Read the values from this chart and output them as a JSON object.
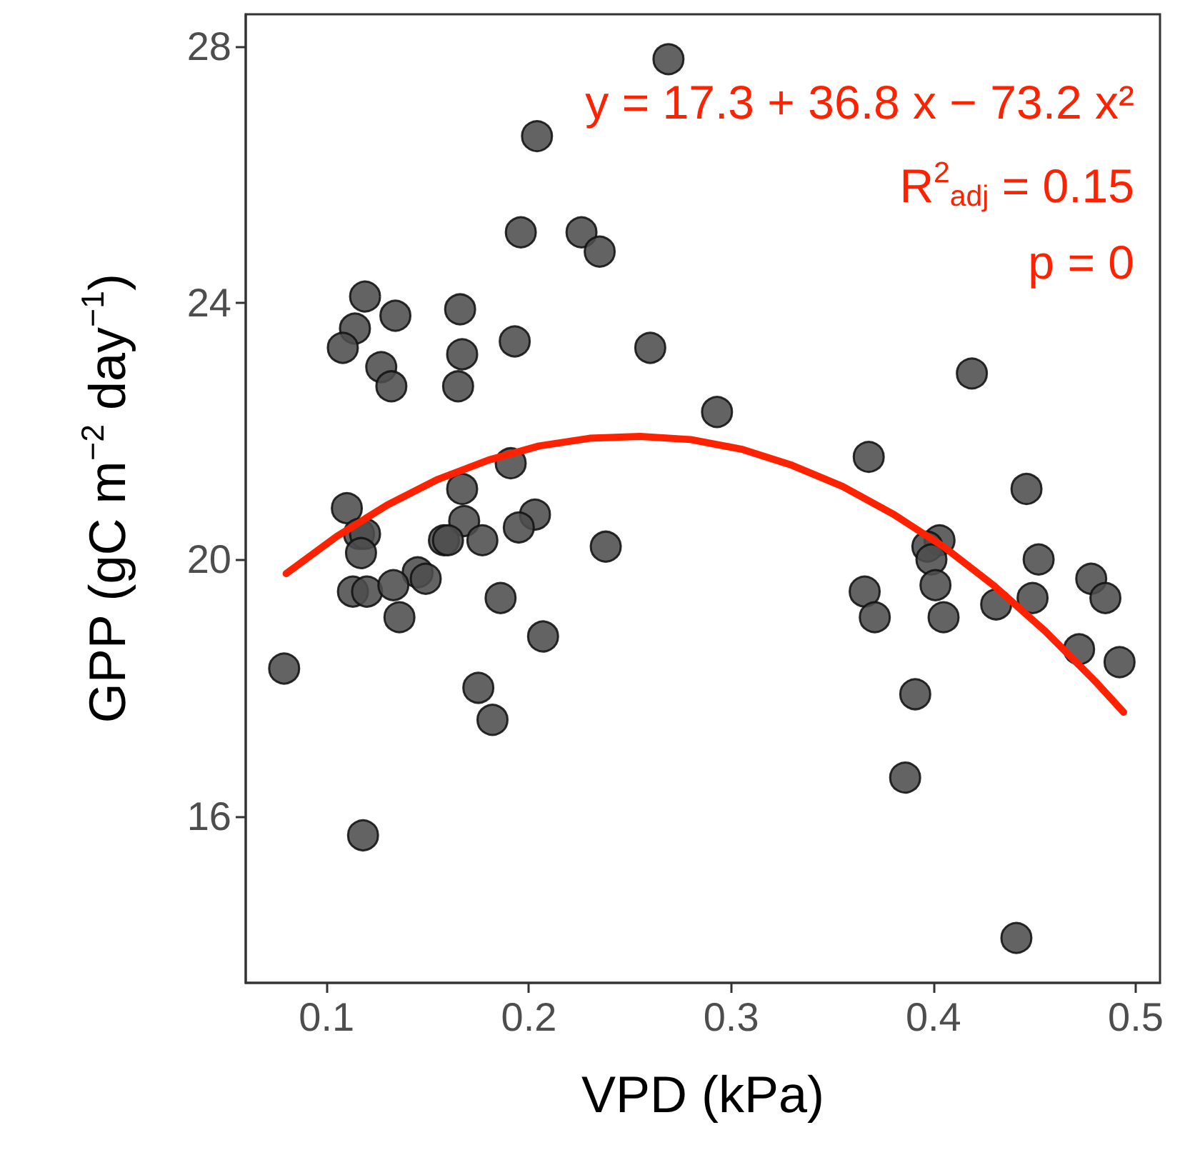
{
  "chart_data": {
    "type": "scatter",
    "xlabel": "VPD (kPa)",
    "ylabel": "GPP (gC m$^{−2}$ day$^{−1}$)",
    "xlim": [
      0.06,
      0.512
    ],
    "xticks": [
      0.1,
      0.2,
      0.3,
      0.4,
      0.5
    ],
    "ylim": [
      13.4,
      28.5
    ],
    "yticks": [
      16,
      20,
      24,
      28
    ],
    "marker": "circle",
    "annotations": [
      "y = 17.3 + 36.8 x − 73.2 x²",
      "R$^{2}$$_{adj}$ = 0.15",
      "p = 0"
    ],
    "series": [
      {
        "color": "#4d4d4d",
        "x": [
          0.079,
          0.196,
          0.226,
          0.235,
          0.119,
          0.134,
          0.114,
          0.108,
          0.166,
          0.193,
          0.26,
          0.127,
          0.132,
          0.167,
          0.165,
          0.293,
          0.191,
          0.167,
          0.11,
          0.203,
          0.168,
          0.116,
          0.119,
          0.158,
          0.16,
          0.177,
          0.195,
          0.117,
          0.238,
          0.145,
          0.149,
          0.113,
          0.12,
          0.133,
          0.136,
          0.186,
          0.207,
          0.175,
          0.182,
          0.118,
          0.269,
          0.204,
          0.419,
          0.368,
          0.446,
          0.403,
          0.397,
          0.399,
          0.452,
          0.366,
          0.401,
          0.478,
          0.485,
          0.449,
          0.431,
          0.371,
          0.405,
          0.472,
          0.492,
          0.391,
          0.386,
          0.441
        ],
        "values": [
          18.3,
          25.1,
          25.1,
          24.8,
          24.1,
          23.8,
          23.6,
          23.3,
          23.9,
          23.4,
          23.3,
          23.0,
          22.7,
          23.2,
          22.7,
          22.3,
          21.5,
          21.1,
          20.8,
          20.7,
          20.6,
          20.4,
          20.4,
          20.3,
          20.3,
          20.3,
          20.5,
          20.1,
          20.2,
          19.8,
          19.7,
          19.5,
          19.5,
          19.6,
          19.1,
          19.4,
          18.8,
          18.0,
          17.5,
          15.7,
          27.8,
          26.6,
          22.9,
          21.6,
          21.1,
          20.3,
          20.2,
          20.0,
          20.0,
          19.5,
          19.6,
          19.7,
          19.4,
          19.4,
          19.3,
          19.1,
          19.1,
          18.6,
          18.4,
          17.9,
          16.6,
          14.1
        ]
      },
      {
        "type": "line",
        "color": "#ff2200",
        "line_style": "solid",
        "marker": "none",
        "x": [
          0.08,
          0.105,
          0.13,
          0.155,
          0.18,
          0.205,
          0.23,
          0.255,
          0.28,
          0.305,
          0.33,
          0.355,
          0.38,
          0.405,
          0.43,
          0.455,
          0.48,
          0.494
        ],
        "values": [
          19.78,
          20.36,
          20.85,
          21.25,
          21.55,
          21.77,
          21.89,
          21.92,
          21.87,
          21.72,
          21.47,
          21.14,
          20.71,
          20.2,
          19.59,
          18.89,
          18.1,
          17.62
        ]
      }
    ]
  }
}
